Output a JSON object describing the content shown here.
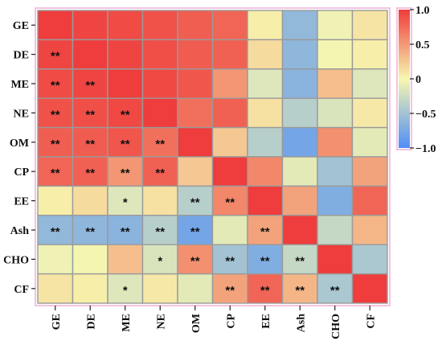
{
  "chart_data": {
    "type": "heatmap",
    "variables": [
      "GE",
      "DE",
      "ME",
      "NE",
      "OM",
      "CP",
      "EE",
      "Ash",
      "CHO",
      "CF"
    ],
    "values": [
      [
        1.0,
        0.95,
        0.92,
        0.88,
        0.82,
        0.78,
        0.05,
        -0.6,
        -0.05,
        0.1
      ],
      [
        0.95,
        1.0,
        0.95,
        0.9,
        0.83,
        0.8,
        0.15,
        -0.62,
        -0.02,
        0.05
      ],
      [
        0.92,
        0.95,
        1.0,
        0.93,
        0.86,
        0.52,
        -0.15,
        -0.65,
        0.3,
        -0.15
      ],
      [
        0.88,
        0.9,
        0.93,
        1.0,
        0.72,
        0.8,
        0.12,
        -0.38,
        -0.18,
        0.08
      ],
      [
        0.82,
        0.83,
        0.86,
        0.72,
        1.0,
        0.25,
        -0.38,
        -0.78,
        0.55,
        -0.12
      ],
      [
        0.78,
        0.8,
        0.52,
        0.8,
        0.25,
        1.0,
        0.6,
        -0.12,
        -0.5,
        0.45
      ],
      [
        0.05,
        0.15,
        -0.15,
        0.12,
        -0.38,
        0.6,
        1.0,
        0.45,
        -0.7,
        0.78
      ],
      [
        -0.6,
        -0.62,
        -0.65,
        -0.38,
        -0.78,
        -0.12,
        0.45,
        1.0,
        -0.3,
        0.35
      ],
      [
        -0.05,
        -0.02,
        0.3,
        -0.18,
        0.55,
        -0.5,
        -0.7,
        -0.3,
        1.0,
        -0.45
      ],
      [
        0.1,
        0.05,
        -0.15,
        0.08,
        -0.12,
        0.45,
        0.78,
        0.35,
        -0.45,
        1.0
      ]
    ],
    "significance": [
      [
        "",
        "",
        "",
        "",
        "",
        "",
        "",
        "",
        "",
        ""
      ],
      [
        "**",
        "",
        "",
        "",
        "",
        "",
        "",
        "",
        "",
        ""
      ],
      [
        "**",
        "**",
        "",
        "",
        "",
        "",
        "",
        "",
        "",
        ""
      ],
      [
        "**",
        "**",
        "**",
        "",
        "",
        "",
        "",
        "",
        "",
        ""
      ],
      [
        "**",
        "**",
        "**",
        "**",
        "",
        "",
        "",
        "",
        "",
        ""
      ],
      [
        "**",
        "**",
        "**",
        "**",
        "",
        "",
        "",
        "",
        "",
        ""
      ],
      [
        "",
        "",
        "*",
        "",
        "**",
        "**",
        "",
        "",
        "",
        ""
      ],
      [
        "**",
        "**",
        "**",
        "**",
        "**",
        "",
        "**",
        "",
        "",
        ""
      ],
      [
        "",
        "",
        "",
        "*",
        "**",
        "**",
        "**",
        "**",
        "",
        ""
      ],
      [
        "",
        "",
        "*",
        "",
        "",
        "**",
        "**",
        "**",
        "**",
        ""
      ]
    ],
    "colorbar": {
      "range": [
        -1.0,
        1.0
      ],
      "ticks": [
        "1.0",
        "0.5",
        "0",
        "−0.5",
        "−1.0"
      ],
      "tick_values": [
        1.0,
        0.5,
        0,
        -0.5,
        -1.0
      ],
      "colors": {
        "neg": "#4f8ef6",
        "mid": "#f7f7b0",
        "pos": "#ef3c3c"
      }
    },
    "frame_color": "#f2c4e0",
    "grid_color": "#9a9a9a"
  }
}
